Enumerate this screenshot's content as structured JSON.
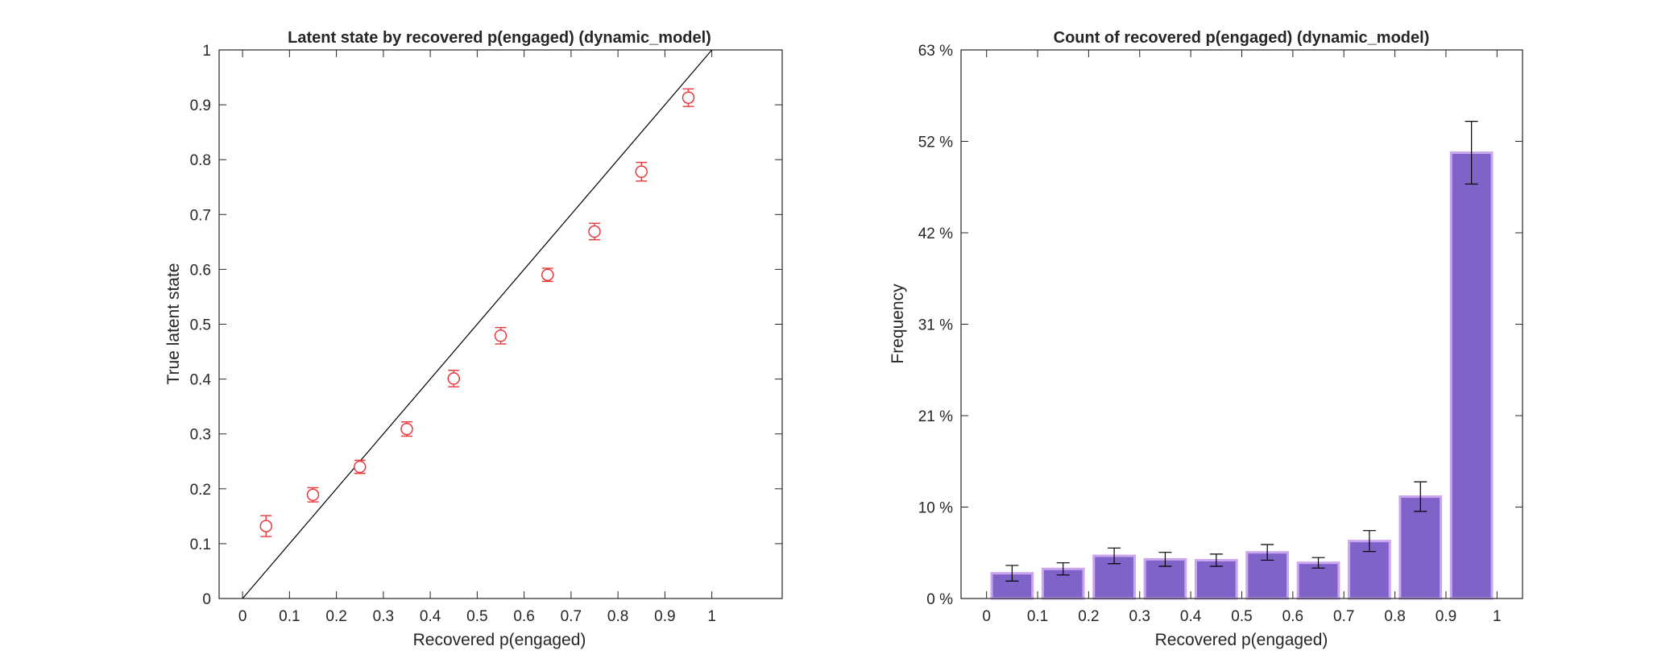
{
  "colors": {
    "marker": "#e8383b",
    "bar_fill": "#7f63c9",
    "bar_edge": "#c9a6ee",
    "identity_line": "#000000",
    "axis": "#262626",
    "errorbar_bar": "#000000"
  },
  "chart_data": [
    {
      "type": "scatter",
      "title": "Latent state by recovered p(engaged) (dynamic_model)",
      "xlabel": "Recovered p(engaged)",
      "ylabel": "True latent state",
      "xlim": [
        -0.05,
        1.15
      ],
      "ylim": [
        0,
        1
      ],
      "xticks": [
        0,
        0.1,
        0.2,
        0.3,
        0.4,
        0.5,
        0.6,
        0.7,
        0.8,
        0.9,
        1
      ],
      "xtick_labels": [
        "0",
        "0.1",
        "0.2",
        "0.3",
        "0.4",
        "0.5",
        "0.6",
        "0.7",
        "0.8",
        "0.9",
        "1"
      ],
      "yticks": [
        0,
        0.1,
        0.2,
        0.3,
        0.4,
        0.5,
        0.6,
        0.7,
        0.8,
        0.9,
        1
      ],
      "ytick_labels": [
        "0",
        "0.1",
        "0.2",
        "0.3",
        "0.4",
        "0.5",
        "0.6",
        "0.7",
        "0.8",
        "0.9",
        "1"
      ],
      "grid": false,
      "reference_line": {
        "x": [
          0,
          1.0
        ],
        "y": [
          0,
          1.0
        ]
      },
      "x": [
        0.05,
        0.15,
        0.25,
        0.35,
        0.45,
        0.55,
        0.65,
        0.75,
        0.85,
        0.95
      ],
      "y": [
        0.132,
        0.189,
        0.24,
        0.309,
        0.401,
        0.479,
        0.59,
        0.669,
        0.778,
        0.913
      ],
      "err_low": [
        0.019,
        0.013,
        0.012,
        0.013,
        0.015,
        0.015,
        0.012,
        0.015,
        0.017,
        0.016
      ],
      "err_high": [
        0.019,
        0.013,
        0.012,
        0.013,
        0.015,
        0.015,
        0.012,
        0.015,
        0.017,
        0.016
      ]
    },
    {
      "type": "bar",
      "title": "Count of recovered p(engaged) (dynamic_model)",
      "xlabel": "Recovered p(engaged)",
      "ylabel": "Frequency",
      "xlim": [
        -0.05,
        1.05
      ],
      "ylim": [
        0,
        0.63
      ],
      "xticks": [
        0,
        0.1,
        0.2,
        0.3,
        0.4,
        0.5,
        0.6,
        0.7,
        0.8,
        0.9,
        1
      ],
      "xtick_labels": [
        "0",
        "0.1",
        "0.2",
        "0.3",
        "0.4",
        "0.5",
        "0.6",
        "0.7",
        "0.8",
        "0.9",
        "1"
      ],
      "yticks": [
        0,
        0.105,
        0.21,
        0.315,
        0.42,
        0.525,
        0.63
      ],
      "ytick_labels": [
        "0 %",
        "10 %",
        "21 %",
        "31 %",
        "42 %",
        "52 %",
        "63 %"
      ],
      "grid": false,
      "categories": [
        "0-0.1",
        "0.1-0.2",
        "0.2-0.3",
        "0.3-0.4",
        "0.4-0.5",
        "0.5-0.6",
        "0.6-0.7",
        "0.7-0.8",
        "0.8-0.9",
        "0.9-1"
      ],
      "bin_centers": [
        0.05,
        0.15,
        0.25,
        0.35,
        0.45,
        0.55,
        0.65,
        0.75,
        0.85,
        0.95
      ],
      "values": [
        0.029,
        0.034,
        0.049,
        0.045,
        0.044,
        0.053,
        0.041,
        0.066,
        0.117,
        0.512
      ],
      "err_low": [
        0.009,
        0.007,
        0.009,
        0.008,
        0.007,
        0.009,
        0.006,
        0.012,
        0.017,
        0.036
      ],
      "err_high": [
        0.009,
        0.007,
        0.009,
        0.008,
        0.007,
        0.009,
        0.006,
        0.012,
        0.017,
        0.036
      ]
    }
  ]
}
